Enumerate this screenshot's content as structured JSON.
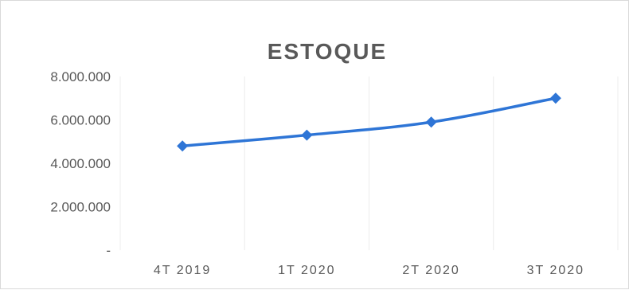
{
  "chart_data": {
    "type": "line",
    "title": "ESTOQUE",
    "xlabel": "",
    "ylabel": "",
    "categories": [
      "4T 2019",
      "1T 2020",
      "2T 2020",
      "3T 2020"
    ],
    "series": [
      {
        "values": [
          4800000,
          5300000,
          5900000,
          7000000
        ],
        "color": "#2e75d6"
      }
    ],
    "ylim": [
      0,
      8000000
    ],
    "y_ticks": [
      0,
      2000000,
      4000000,
      6000000,
      8000000
    ],
    "y_tick_labels": [
      "-",
      "2.000.000",
      "4.000.000",
      "6.000.000",
      "8.000.000"
    ],
    "grid": {
      "vertical": true,
      "horizontal": false
    },
    "legend": "none",
    "marker": "diamond"
  }
}
